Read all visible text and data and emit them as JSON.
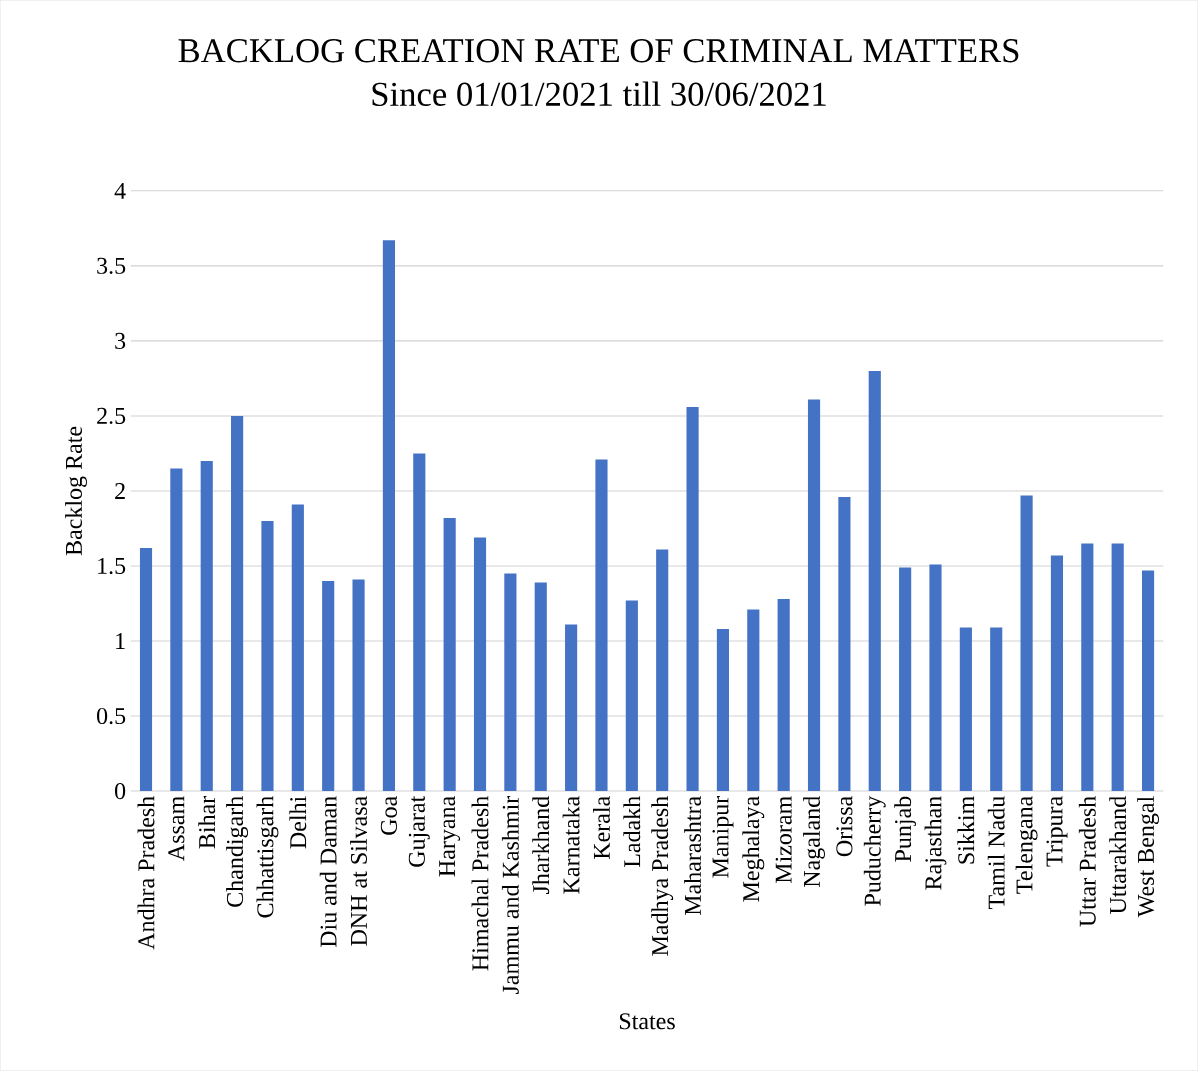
{
  "chart_data": {
    "type": "bar",
    "title": "BACKLOG CREATION RATE OF CRIMINAL MATTERS",
    "subtitle": "Since 01/01/2021  till 30/06/2021",
    "xlabel": "States",
    "ylabel": "Backlog Rate",
    "categories": [
      "Andhra Pradesh",
      "Assam",
      "Bihar",
      "Chandigarh",
      "Chhattisgarh",
      "Delhi",
      "Diu and Daman",
      "DNH at Silvasa",
      "Goa",
      "Gujarat",
      "Haryana",
      "Himachal Pradesh",
      "Jammu and Kashmir",
      "Jharkhand",
      "Karnataka",
      "Kerala",
      "Ladakh",
      "Madhya Pradesh",
      "Maharashtra",
      "Manipur",
      "Meghalaya",
      "Mizoram",
      "Nagaland",
      "Orissa",
      "Puducherry",
      "Punjab",
      "Rajasthan",
      "Sikkim",
      "Tamil Nadu",
      "Telengana",
      "Tripura",
      "Uttar Pradesh",
      "Uttarakhand",
      "West Bengal"
    ],
    "values": [
      1.62,
      2.15,
      2.2,
      2.5,
      1.8,
      1.91,
      1.4,
      1.41,
      3.67,
      2.25,
      1.82,
      1.69,
      1.45,
      1.39,
      1.11,
      2.21,
      1.27,
      1.61,
      2.56,
      1.08,
      1.21,
      1.28,
      2.61,
      1.96,
      2.8,
      1.49,
      1.51,
      1.09,
      1.09,
      1.97,
      1.57,
      1.65,
      1.65,
      1.47
    ],
    "color": "#4472c4",
    "ylim": [
      0,
      4
    ],
    "yticks": [
      0,
      0.5,
      1,
      1.5,
      2,
      2.5,
      3,
      3.5,
      4
    ],
    "grid": "y"
  }
}
